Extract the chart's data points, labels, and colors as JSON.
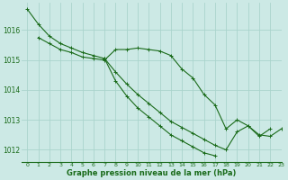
{
  "background_color": "#cce9e5",
  "grid_color": "#aad4cc",
  "line_color": "#1a6b1a",
  "title": "Graphe pression niveau de la mer (hPa)",
  "xlim": [
    -0.5,
    23
  ],
  "ylim": [
    1011.6,
    1016.9
  ],
  "yticks": [
    1012,
    1013,
    1014,
    1015,
    1016
  ],
  "xtick_labels": [
    "0",
    "1",
    "2",
    "3",
    "4",
    "5",
    "6",
    "7",
    "8",
    "9",
    "10",
    "11",
    "12",
    "13",
    "14",
    "15",
    "16",
    "17",
    "18",
    "19",
    "20",
    "21",
    "22",
    "23"
  ],
  "series": [
    {
      "x": [
        0,
        1,
        2,
        3,
        4,
        5,
        6,
        7
      ],
      "y": [
        1016.7,
        1016.2,
        1015.8,
        1015.55,
        1015.4,
        1015.25,
        1015.15,
        1015.05
      ]
    },
    {
      "x": [
        1,
        2,
        3,
        4,
        5,
        6,
        7,
        8,
        9,
        10,
        11,
        12,
        13,
        14,
        15,
        16,
        17,
        18,
        19,
        20,
        21,
        22,
        23
      ],
      "y": [
        1015.75,
        1015.55,
        1015.35,
        1015.25,
        1015.1,
        1015.05,
        1015.0,
        1015.35,
        1015.35,
        1015.4,
        1015.35,
        1015.3,
        1015.15,
        1014.7,
        1014.4,
        1013.85,
        1013.5,
        1012.7,
        1013.0,
        1012.8,
        1012.45,
        1012.7,
        null
      ]
    },
    {
      "x": [
        7,
        8,
        9,
        10,
        11,
        12,
        13,
        14,
        15,
        16,
        17,
        18,
        19,
        20,
        21,
        22,
        23
      ],
      "y": [
        1015.05,
        1014.6,
        1014.2,
        1013.85,
        1013.55,
        1013.25,
        1012.95,
        1012.75,
        1012.55,
        1012.35,
        1012.15,
        1012.0,
        1012.6,
        1012.8,
        1012.5,
        1012.45,
        1012.7
      ]
    },
    {
      "x": [
        7,
        8,
        9,
        10,
        11,
        12,
        13,
        14,
        15,
        16,
        17,
        18,
        19,
        20,
        21,
        22,
        23
      ],
      "y": [
        1015.05,
        1014.3,
        1013.8,
        1013.4,
        1013.1,
        1012.8,
        1012.5,
        1012.3,
        1012.1,
        1011.9,
        1011.8,
        null,
        null,
        null,
        null,
        null,
        null
      ]
    }
  ]
}
